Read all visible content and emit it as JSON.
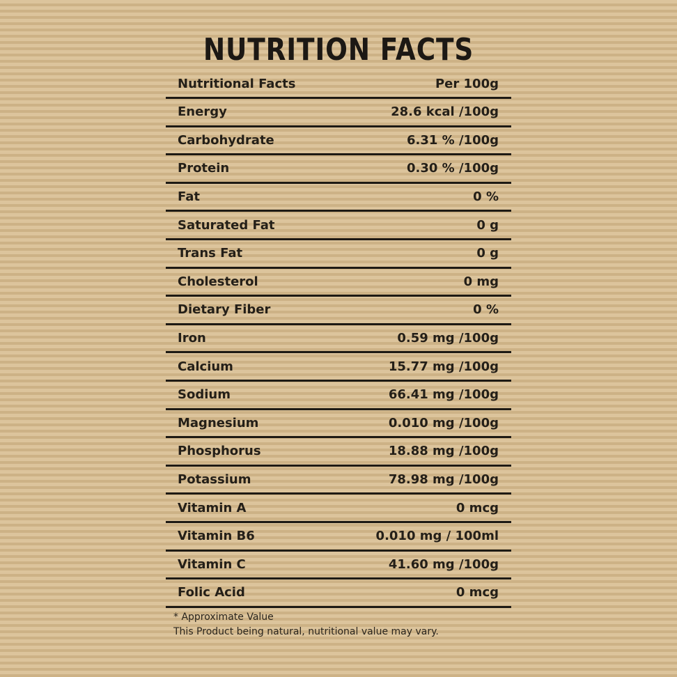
{
  "title": "NUTRITION FACTS",
  "header": {
    "label": "Nutritional Facts",
    "value": "Per 100g"
  },
  "rows": [
    {
      "label": "Energy",
      "value": "28.6 kcal /100g"
    },
    {
      "label": "Carbohydrate",
      "value": "6.31 % /100g"
    },
    {
      "label": "Protein",
      "value": "0.30 % /100g"
    },
    {
      "label": "Fat",
      "value": "0 %"
    },
    {
      "label": "Saturated Fat",
      "value": "0 g"
    },
    {
      "label": "Trans Fat",
      "value": "0 g"
    },
    {
      "label": "Cholesterol",
      "value": "0 mg"
    },
    {
      "label": "Dietary Fiber",
      "value": "0 %"
    },
    {
      "label": "Iron",
      "value": "0.59 mg /100g"
    },
    {
      "label": "Calcium",
      "value": "15.77 mg /100g"
    },
    {
      "label": "Sodium",
      "value": "66.41 mg /100g"
    },
    {
      "label": "Magnesium",
      "value": "0.010 mg /100g"
    },
    {
      "label": "Phosphorus",
      "value": "18.88 mg /100g"
    },
    {
      "label": "Potassium",
      "value": "78.98 mg /100g"
    },
    {
      "label": "Vitamin A",
      "value": "0 mcg"
    },
    {
      "label": "Vitamin B6",
      "value": "0.010 mg / 100ml"
    },
    {
      "label": "Vitamin C",
      "value": "41.60 mg /100g"
    },
    {
      "label": "Folic Acid",
      "value": "0 mcg"
    }
  ],
  "footnote": {
    "line1": "* Approximate Value",
    "line2": "This Product being natural, nutritional value may vary."
  },
  "colors": {
    "background": "#d7bf95",
    "stripe": "#cdb286",
    "text": "#1e1a14"
  }
}
